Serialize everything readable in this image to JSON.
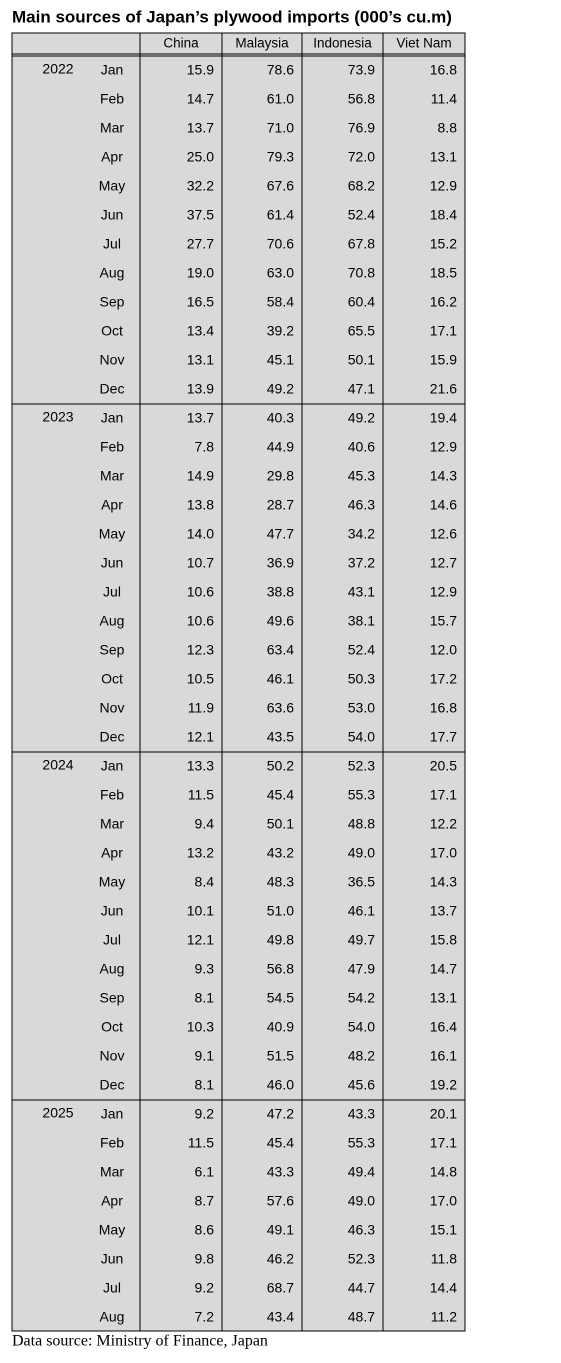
{
  "title": "Main sources of Japan’s plywood imports (000’s cu.m)",
  "columns": [
    "China",
    "Malaysia",
    "Indonesia",
    "Viet Nam"
  ],
  "groups": [
    {
      "year": "2022",
      "rows": [
        {
          "month": "Jan",
          "values": [
            "15.9",
            "78.6",
            "73.9",
            "16.8"
          ]
        },
        {
          "month": "Feb",
          "values": [
            "14.7",
            "61.0",
            "56.8",
            "11.4"
          ]
        },
        {
          "month": "Mar",
          "values": [
            "13.7",
            "71.0",
            "76.9",
            "8.8"
          ]
        },
        {
          "month": "Apr",
          "values": [
            "25.0",
            "79.3",
            "72.0",
            "13.1"
          ]
        },
        {
          "month": "May",
          "values": [
            "32.2",
            "67.6",
            "68.2",
            "12.9"
          ]
        },
        {
          "month": "Jun",
          "values": [
            "37.5",
            "61.4",
            "52.4",
            "18.4"
          ]
        },
        {
          "month": "Jul",
          "values": [
            "27.7",
            "70.6",
            "67.8",
            "15.2"
          ]
        },
        {
          "month": "Aug",
          "values": [
            "19.0",
            "63.0",
            "70.8",
            "18.5"
          ]
        },
        {
          "month": "Sep",
          "values": [
            "16.5",
            "58.4",
            "60.4",
            "16.2"
          ]
        },
        {
          "month": "Oct",
          "values": [
            "13.4",
            "39.2",
            "65.5",
            "17.1"
          ]
        },
        {
          "month": "Nov",
          "values": [
            "13.1",
            "45.1",
            "50.1",
            "15.9"
          ]
        },
        {
          "month": "Dec",
          "values": [
            "13.9",
            "49.2",
            "47.1",
            "21.6"
          ]
        }
      ]
    },
    {
      "year": "2023",
      "rows": [
        {
          "month": "Jan",
          "values": [
            "13.7",
            "40.3",
            "49.2",
            "19.4"
          ]
        },
        {
          "month": "Feb",
          "values": [
            "7.8",
            "44.9",
            "40.6",
            "12.9"
          ]
        },
        {
          "month": "Mar",
          "values": [
            "14.9",
            "29.8",
            "45.3",
            "14.3"
          ]
        },
        {
          "month": "Apr",
          "values": [
            "13.8",
            "28.7",
            "46.3",
            "14.6"
          ]
        },
        {
          "month": "May",
          "values": [
            "14.0",
            "47.7",
            "34.2",
            "12.6"
          ]
        },
        {
          "month": "Jun",
          "values": [
            "10.7",
            "36.9",
            "37.2",
            "12.7"
          ]
        },
        {
          "month": "Jul",
          "values": [
            "10.6",
            "38.8",
            "43.1",
            "12.9"
          ]
        },
        {
          "month": "Aug",
          "values": [
            "10.6",
            "49.6",
            "38.1",
            "15.7"
          ]
        },
        {
          "month": "Sep",
          "values": [
            "12.3",
            "63.4",
            "52.4",
            "12.0"
          ]
        },
        {
          "month": "Oct",
          "values": [
            "10.5",
            "46.1",
            "50.3",
            "17.2"
          ]
        },
        {
          "month": "Nov",
          "values": [
            "11.9",
            "63.6",
            "53.0",
            "16.8"
          ]
        },
        {
          "month": "Dec",
          "values": [
            "12.1",
            "43.5",
            "54.0",
            "17.7"
          ]
        }
      ]
    },
    {
      "year": "2024",
      "rows": [
        {
          "month": "Jan",
          "values": [
            "13.3",
            "50.2",
            "52.3",
            "20.5"
          ]
        },
        {
          "month": "Feb",
          "values": [
            "11.5",
            "45.4",
            "55.3",
            "17.1"
          ]
        },
        {
          "month": "Mar",
          "values": [
            "9.4",
            "50.1",
            "48.8",
            "12.2"
          ]
        },
        {
          "month": "Apr",
          "values": [
            "13.2",
            "43.2",
            "49.0",
            "17.0"
          ]
        },
        {
          "month": "May",
          "values": [
            "8.4",
            "48.3",
            "36.5",
            "14.3"
          ]
        },
        {
          "month": "Jun",
          "values": [
            "10.1",
            "51.0",
            "46.1",
            "13.7"
          ]
        },
        {
          "month": "Jul",
          "values": [
            "12.1",
            "49.8",
            "49.7",
            "15.8"
          ]
        },
        {
          "month": "Aug",
          "values": [
            "9.3",
            "56.8",
            "47.9",
            "14.7"
          ]
        },
        {
          "month": "Sep",
          "values": [
            "8.1",
            "54.5",
            "54.2",
            "13.1"
          ]
        },
        {
          "month": "Oct",
          "values": [
            "10.3",
            "40.9",
            "54.0",
            "16.4"
          ]
        },
        {
          "month": "Nov",
          "values": [
            "9.1",
            "51.5",
            "48.2",
            "16.1"
          ]
        },
        {
          "month": "Dec",
          "values": [
            "8.1",
            "46.0",
            "45.6",
            "19.2"
          ]
        }
      ]
    },
    {
      "year": "2025",
      "rows": [
        {
          "month": "Jan",
          "values": [
            "9.2",
            "47.2",
            "43.3",
            "20.1"
          ]
        },
        {
          "month": "Feb",
          "values": [
            "11.5",
            "45.4",
            "55.3",
            "17.1"
          ]
        },
        {
          "month": "Mar",
          "values": [
            "6.1",
            "43.3",
            "49.4",
            "14.8"
          ]
        },
        {
          "month": "Apr",
          "values": [
            "8.7",
            "57.6",
            "49.0",
            "17.0"
          ]
        },
        {
          "month": "May",
          "values": [
            "8.6",
            "49.1",
            "46.3",
            "15.1"
          ]
        },
        {
          "month": "Jun",
          "values": [
            "9.8",
            "46.2",
            "52.3",
            "11.8"
          ]
        },
        {
          "month": "Jul",
          "values": [
            "9.2",
            "68.7",
            "44.7",
            "14.4"
          ]
        },
        {
          "month": "Aug",
          "values": [
            "7.2",
            "43.4",
            "48.7",
            "11.2"
          ]
        }
      ]
    }
  ],
  "source": "Data source: Ministry of Finance, Japan"
}
